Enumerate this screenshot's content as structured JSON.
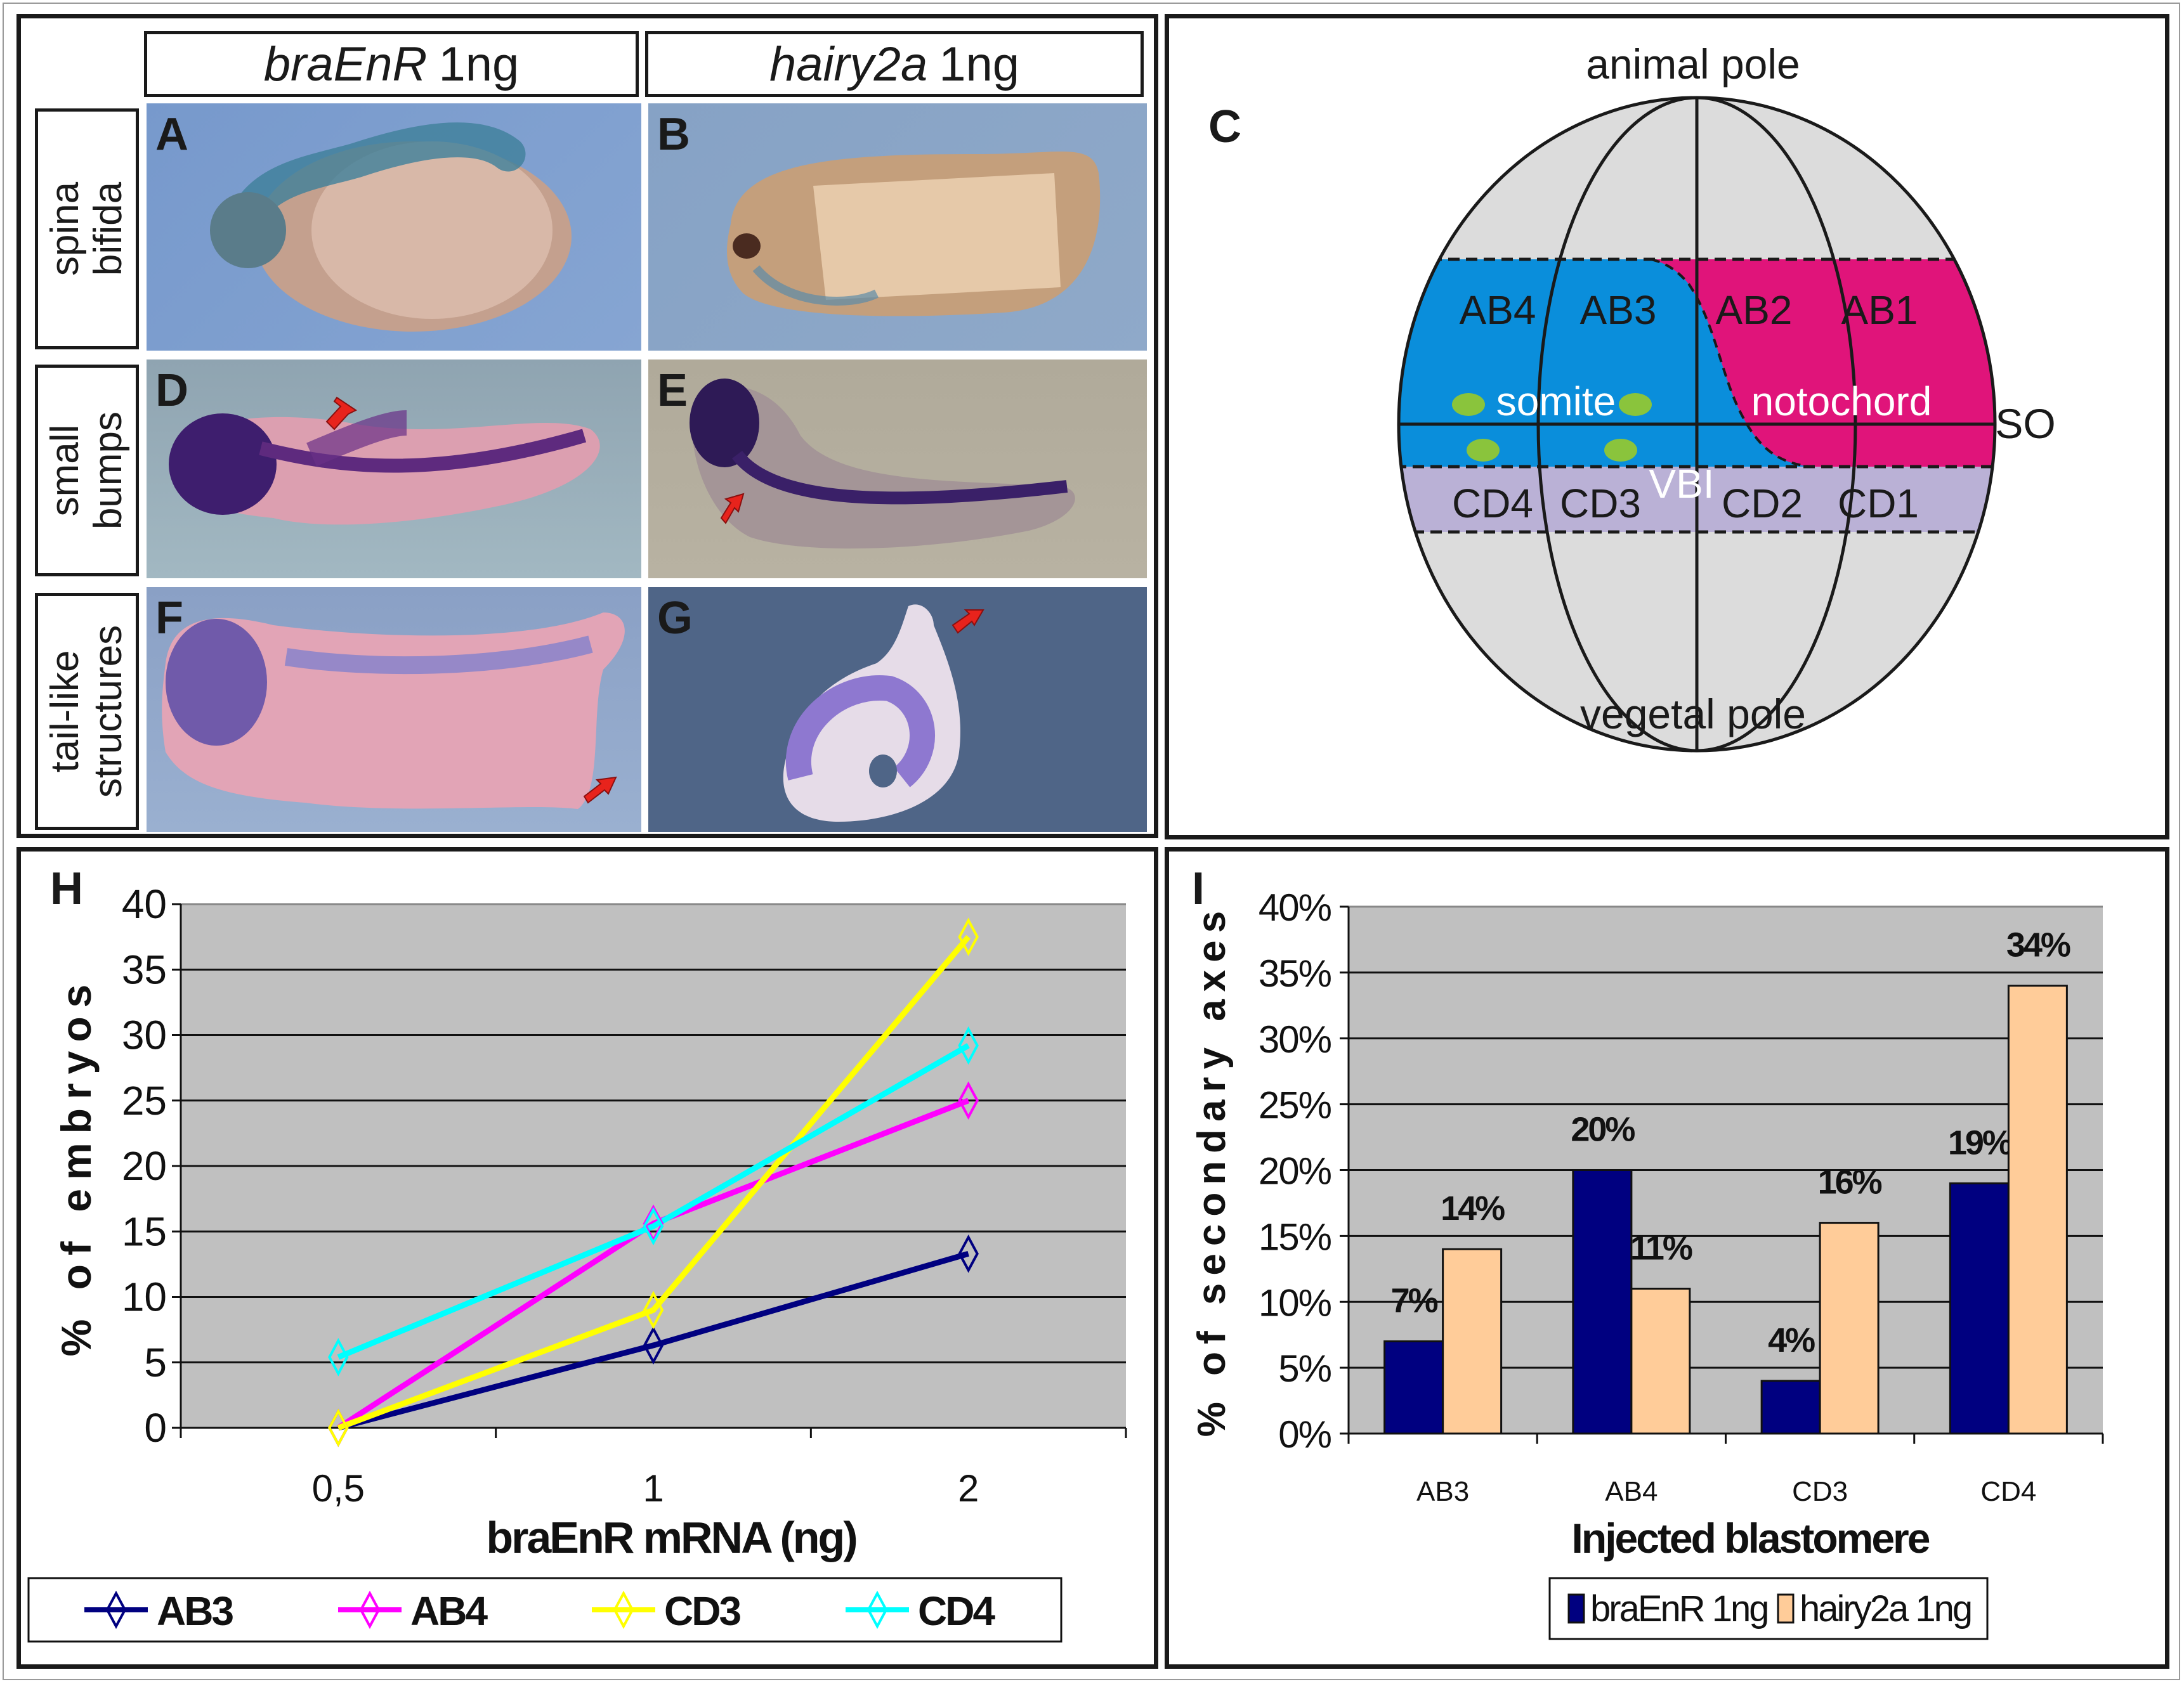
{
  "figure": {
    "panel_labels": {
      "A": "A",
      "B": "B",
      "C": "C",
      "D": "D",
      "E": "E",
      "F": "F",
      "G": "G",
      "H": "H",
      "I": "I"
    }
  },
  "photos": {
    "col_headers": [
      {
        "gene": "braEnR",
        "dose": "1ng"
      },
      {
        "gene": "hairy2a",
        "dose": "1ng"
      }
    ],
    "row_labels": [
      "spina\nbifida",
      "small\nbumps",
      "tail-like\nstructures"
    ],
    "colors": {
      "bg_A": "#7f9fcf",
      "bg_B": "#8aa6c8",
      "bg_D": "#97aebb",
      "bg_E": "#b3ad9d",
      "bg_F": "#8ea3c7",
      "bg_G": "#4f6587",
      "arrow": "#e8231c"
    }
  },
  "diagram": {
    "animal_pole": "animal pole",
    "vegetal_pole": "vegetal pole",
    "so_label": "SO",
    "somite_label": "somite",
    "notochord_label": "notochord",
    "vbi_label": "VBI",
    "top_cells": [
      "AB4",
      "AB3",
      "AB2",
      "AB1"
    ],
    "bottom_cells": [
      "CD4",
      "CD3",
      "CD2",
      "CD1"
    ],
    "colors": {
      "sphere": "#dcdcdc",
      "somite": "#0a8edb",
      "notochord": "#e0147a",
      "vbi": "#bab1d6",
      "spots": "#8ac43c"
    }
  },
  "chart_data": [
    {
      "type": "line",
      "panel": "H",
      "title": "",
      "xlabel": "braEnR mRNA (ng)",
      "ylabel": "% of embryos",
      "categories": [
        "0,5",
        "1",
        "2"
      ],
      "ylim": [
        0,
        40
      ],
      "yticks": [
        "0",
        "5",
        "10",
        "15",
        "20",
        "25",
        "30",
        "35",
        "40"
      ],
      "grid": true,
      "legend": "bottom",
      "series": [
        {
          "name": "AB3",
          "color": "#000080",
          "values": [
            0,
            6.3,
            13.3
          ]
        },
        {
          "name": "AB4",
          "color": "#ff00ff",
          "values": [
            0,
            15.6,
            25
          ]
        },
        {
          "name": "CD3",
          "color": "#ffff00",
          "values": [
            0,
            9,
            37.5
          ]
        },
        {
          "name": "CD4",
          "color": "#00ffff",
          "values": [
            5.4,
            15.4,
            29.2
          ]
        }
      ]
    },
    {
      "type": "bar",
      "panel": "I",
      "title": "",
      "xlabel": "Injected blastomere",
      "ylabel": "% of secondary axes",
      "categories": [
        "AB3",
        "AB4",
        "CD3",
        "CD4"
      ],
      "ylim": [
        0,
        40
      ],
      "yticks": [
        "0%",
        "5%",
        "10%",
        "15%",
        "20%",
        "25%",
        "30%",
        "35%",
        "40%"
      ],
      "grid": true,
      "legend": "bottom",
      "series": [
        {
          "name": "braEnR 1ng",
          "color": "#000080",
          "values": [
            7,
            20,
            4,
            19
          ],
          "labels": [
            "7%",
            "20%",
            "4%",
            "19%"
          ]
        },
        {
          "name": "hairy2a 1ng",
          "color": "#ffcc99",
          "values": [
            14,
            11,
            16,
            34
          ],
          "labels": [
            "14%",
            "11%",
            "16%",
            "34%"
          ]
        }
      ]
    }
  ]
}
